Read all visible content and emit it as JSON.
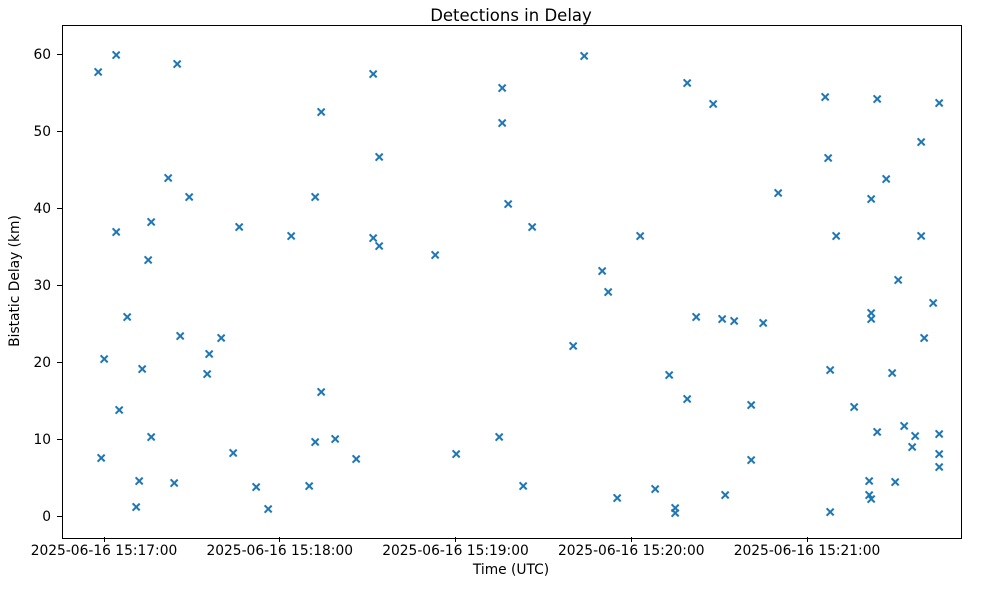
{
  "chart_data": {
    "type": "scatter",
    "title": "Detections in Delay",
    "xlabel": "Time (UTC)",
    "ylabel": "Bistatic Delay (km)",
    "date": "2025-06-16",
    "marker": "x",
    "marker_color": "#1f77b4",
    "grid": false,
    "legend": "none",
    "x_tick_labels": [
      "2025-06-16 15:17:00",
      "2025-06-16 15:18:00",
      "2025-06-16 15:19:00",
      "2025-06-16 15:20:00",
      "2025-06-16 15:21:00"
    ],
    "y_ticks": [
      0,
      10,
      20,
      30,
      40,
      50,
      60
    ],
    "xlim": [
      "15:16:46",
      "15:21:52"
    ],
    "ylim": [
      -2.7,
      63.8
    ],
    "points": [
      [
        "15:16:58",
        57.7
      ],
      [
        "15:16:59",
        7.6
      ],
      [
        "15:17:00",
        20.5
      ],
      [
        "15:17:04",
        59.9
      ],
      [
        "15:17:04",
        36.9
      ],
      [
        "15:17:05",
        13.8
      ],
      [
        "15:17:08",
        25.9
      ],
      [
        "15:17:11",
        1.2
      ],
      [
        "15:17:12",
        4.6
      ],
      [
        "15:17:13",
        19.2
      ],
      [
        "15:17:15",
        33.3
      ],
      [
        "15:17:16",
        38.2
      ],
      [
        "15:17:16",
        10.3
      ],
      [
        "15:17:22",
        44.0
      ],
      [
        "15:17:24",
        4.4
      ],
      [
        "15:17:25",
        58.8
      ],
      [
        "15:17:26",
        23.4
      ],
      [
        "15:17:29",
        41.5
      ],
      [
        "15:17:35",
        18.5
      ],
      [
        "15:17:36",
        21.1
      ],
      [
        "15:17:40",
        23.2
      ],
      [
        "15:17:44",
        8.2
      ],
      [
        "15:17:46",
        37.6
      ],
      [
        "15:17:52",
        3.8
      ],
      [
        "15:17:56",
        1.0
      ],
      [
        "15:18:04",
        36.4
      ],
      [
        "15:18:10",
        4.0
      ],
      [
        "15:18:12",
        41.5
      ],
      [
        "15:18:12",
        9.7
      ],
      [
        "15:18:14",
        52.5
      ],
      [
        "15:18:14",
        16.2
      ],
      [
        "15:18:19",
        10.1
      ],
      [
        "15:18:26",
        7.5
      ],
      [
        "15:18:32",
        57.5
      ],
      [
        "15:18:32",
        36.2
      ],
      [
        "15:18:34",
        46.7
      ],
      [
        "15:18:34",
        35.1
      ],
      [
        "15:18:53",
        34.0
      ],
      [
        "15:19:00",
        8.1
      ],
      [
        "15:19:15",
        10.3
      ],
      [
        "15:19:16",
        55.6
      ],
      [
        "15:19:16",
        51.1
      ],
      [
        "15:19:18",
        40.6
      ],
      [
        "15:19:23",
        4.0
      ],
      [
        "15:19:26",
        37.6
      ],
      [
        "15:19:40",
        22.1
      ],
      [
        "15:19:44",
        59.8
      ],
      [
        "15:19:50",
        31.9
      ],
      [
        "15:19:52",
        29.2
      ],
      [
        "15:19:55",
        2.4
      ],
      [
        "15:20:03",
        36.4
      ],
      [
        "15:20:08",
        3.6
      ],
      [
        "15:20:13",
        18.4
      ],
      [
        "15:20:15",
        1.1
      ],
      [
        "15:20:15",
        0.5
      ],
      [
        "15:20:19",
        56.3
      ],
      [
        "15:20:19",
        15.3
      ],
      [
        "15:20:22",
        25.9
      ],
      [
        "15:20:28",
        53.6
      ],
      [
        "15:20:31",
        25.6
      ],
      [
        "15:20:32",
        2.8
      ],
      [
        "15:20:35",
        25.4
      ],
      [
        "15:20:41",
        14.5
      ],
      [
        "15:20:41",
        7.3
      ],
      [
        "15:20:45",
        25.1
      ],
      [
        "15:20:50",
        42.0
      ],
      [
        "15:21:06",
        54.5
      ],
      [
        "15:21:07",
        46.6
      ],
      [
        "15:21:08",
        19.0
      ],
      [
        "15:21:08",
        0.6
      ],
      [
        "15:21:10",
        36.4
      ],
      [
        "15:21:16",
        14.2
      ],
      [
        "15:21:21",
        4.6
      ],
      [
        "15:21:21",
        2.8
      ],
      [
        "15:21:22",
        41.2
      ],
      [
        "15:21:22",
        26.4
      ],
      [
        "15:21:22",
        25.6
      ],
      [
        "15:21:22",
        2.3
      ],
      [
        "15:21:24",
        54.2
      ],
      [
        "15:21:24",
        11.0
      ],
      [
        "15:21:27",
        43.8
      ],
      [
        "15:21:29",
        18.6
      ],
      [
        "15:21:30",
        4.5
      ],
      [
        "15:21:31",
        30.7
      ],
      [
        "15:21:33",
        11.8
      ],
      [
        "15:21:36",
        9.0
      ],
      [
        "15:21:37",
        10.5
      ],
      [
        "15:21:39",
        48.6
      ],
      [
        "15:21:39",
        36.4
      ],
      [
        "15:21:40",
        23.2
      ],
      [
        "15:21:43",
        27.7
      ],
      [
        "15:21:45",
        53.7
      ],
      [
        "15:21:45",
        10.7
      ],
      [
        "15:21:45",
        8.1
      ],
      [
        "15:21:45",
        6.4
      ]
    ]
  }
}
